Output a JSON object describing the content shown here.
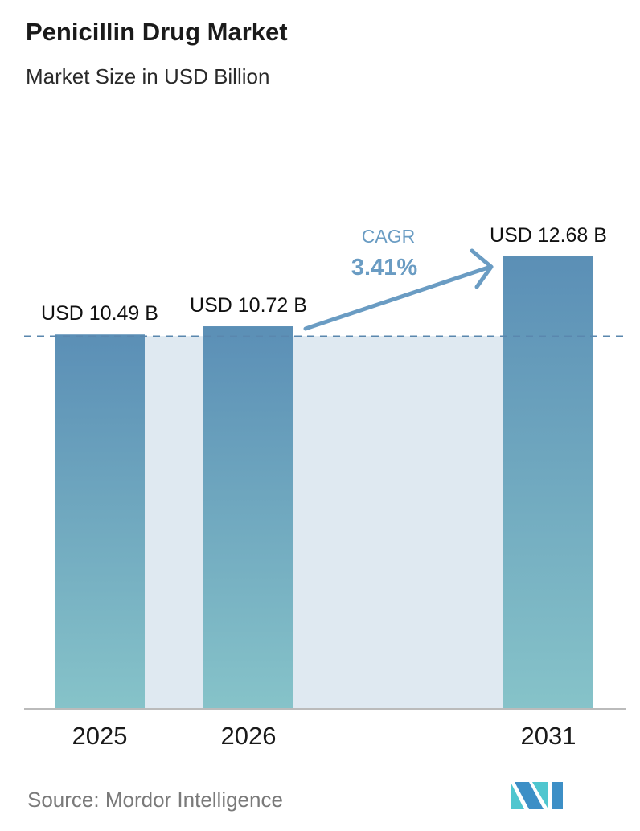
{
  "chart_data": {
    "type": "bar",
    "title": "Penicillin Drug Market",
    "subtitle": "Market Size in USD Billion",
    "categories": [
      "2025",
      "2026",
      "2031"
    ],
    "values": [
      10.49,
      10.72,
      12.68
    ],
    "data_labels": [
      "USD 10.49 B",
      "USD 10.72 B",
      "USD 12.68 B"
    ],
    "unit": "USD Billion",
    "annotation": {
      "label": "CAGR",
      "value": "3.41%"
    },
    "ylim": [
      0,
      13
    ],
    "grid": false,
    "legend": "none",
    "colors": {
      "bar_top": "#5b8fb6",
      "bar_bottom": "#86c3c9",
      "band": "#dfe9f1",
      "cagr": "#6a9cc3",
      "dashed": "#5a87ae"
    }
  },
  "source": "Source:  Mordor Intelligence",
  "logo": {
    "text": "MI",
    "colors": [
      "#3d8fc6",
      "#4fc6cf"
    ]
  }
}
